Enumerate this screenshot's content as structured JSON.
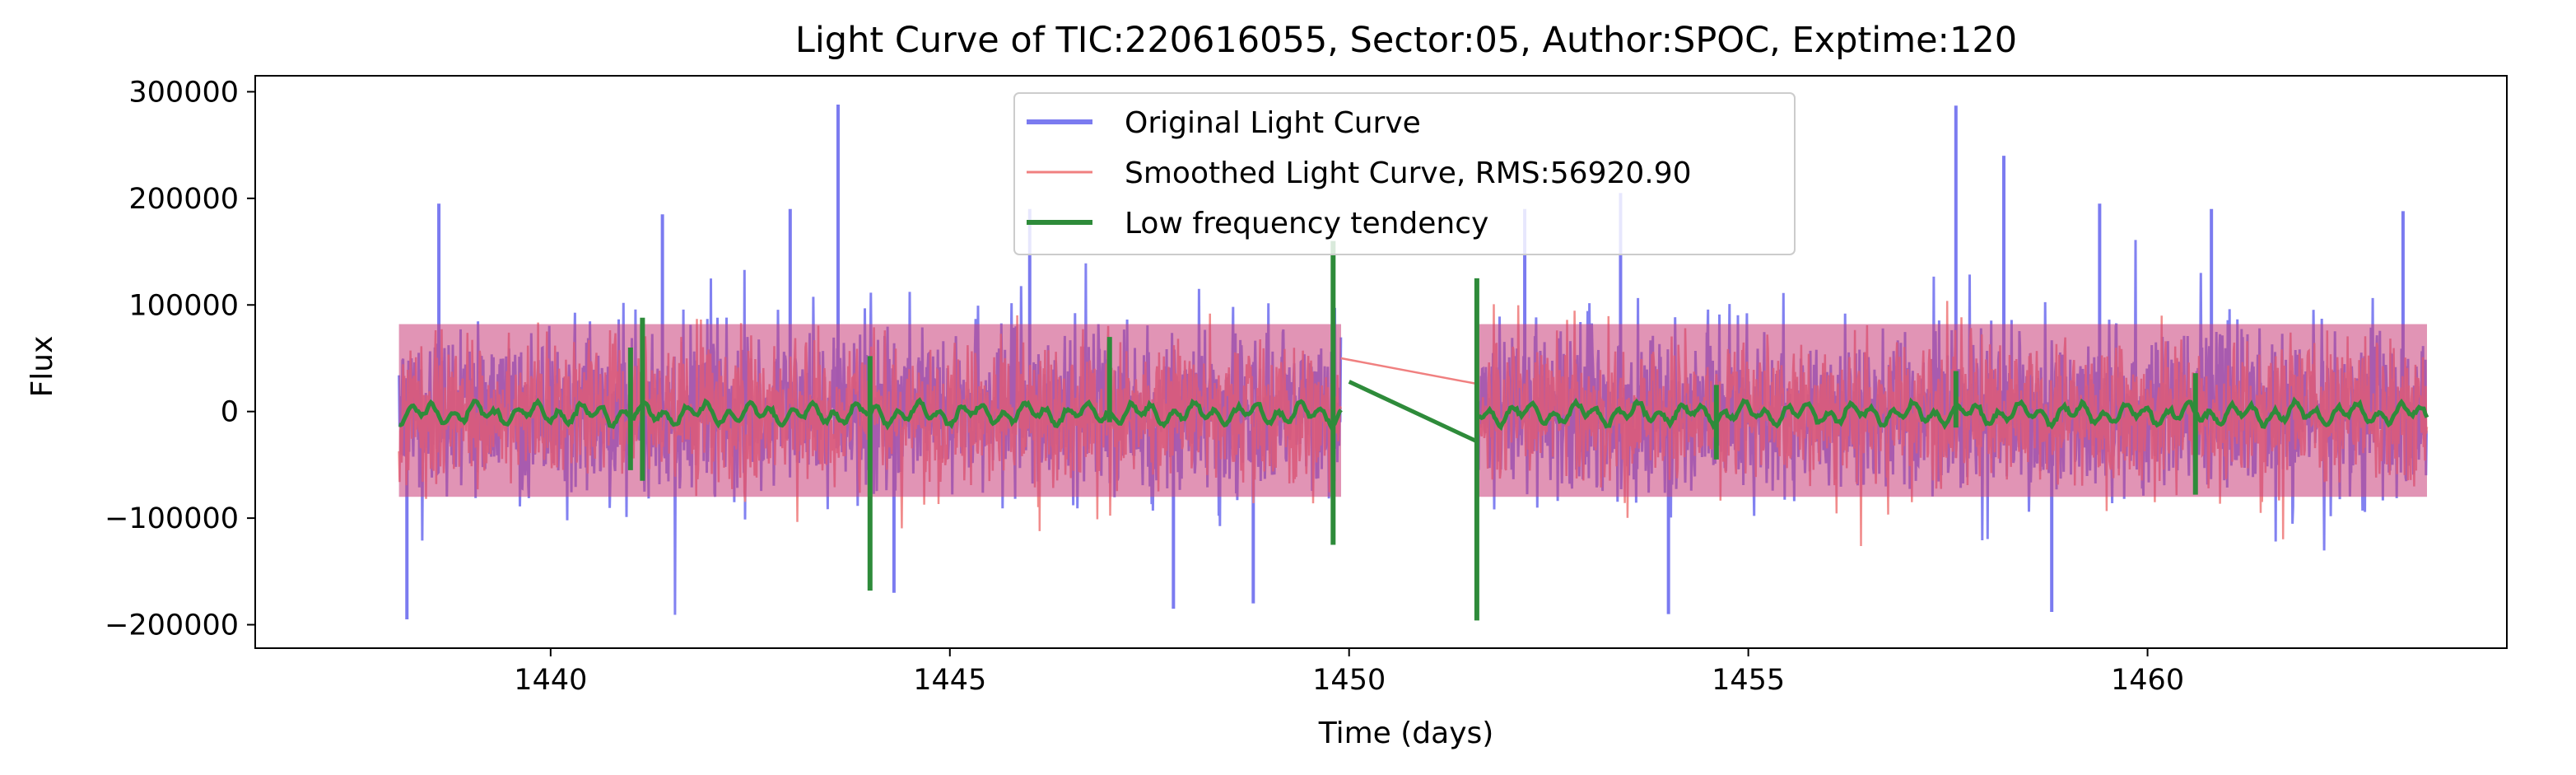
{
  "chart_data": {
    "type": "line",
    "title": "Light Curve of TIC:220616055, Sector:05, Author:SPOC, Exptime:120",
    "xlabel": "Time (days)",
    "ylabel": "Flux",
    "xlim": [
      1436.3,
      1464.5
    ],
    "ylim": [
      -222000,
      315000
    ],
    "x_ticks": [
      1440,
      1445,
      1450,
      1455,
      1460
    ],
    "y_ticks": [
      -200000,
      -100000,
      0,
      100000,
      200000,
      300000
    ],
    "x_tick_labels": [
      "1440",
      "1445",
      "1450",
      "1455",
      "1460"
    ],
    "y_tick_labels": [
      "−200000",
      "−100000",
      "0",
      "100000",
      "200000",
      "300000"
    ],
    "grid": false,
    "legend_position": "top-center",
    "segments": [
      {
        "x_start": 1438.1,
        "x_end": 1449.9
      },
      {
        "x_start": 1451.6,
        "x_end": 1463.5
      }
    ],
    "series": [
      {
        "name": "Original Light Curve",
        "color": "#7b7bf0",
        "style": "noisy-band",
        "typical_range": [
          -110000,
          120000
        ],
        "spikes": [
          {
            "x": 1438.2,
            "y": -195000
          },
          {
            "x": 1438.6,
            "y": 195000
          },
          {
            "x": 1441.4,
            "y": 185000
          },
          {
            "x": 1443.0,
            "y": 190000
          },
          {
            "x": 1443.6,
            "y": 288000
          },
          {
            "x": 1444.3,
            "y": -170000
          },
          {
            "x": 1446.0,
            "y": 190000
          },
          {
            "x": 1447.8,
            "y": -185000
          },
          {
            "x": 1448.8,
            "y": -180000
          },
          {
            "x": 1452.2,
            "y": 190000
          },
          {
            "x": 1453.4,
            "y": 205000
          },
          {
            "x": 1454.0,
            "y": -190000
          },
          {
            "x": 1457.6,
            "y": 287000
          },
          {
            "x": 1458.2,
            "y": 240000
          },
          {
            "x": 1458.8,
            "y": -188000
          },
          {
            "x": 1459.4,
            "y": 195000
          },
          {
            "x": 1460.8,
            "y": 190000
          },
          {
            "x": 1463.2,
            "y": 188000
          }
        ]
      },
      {
        "name": "Smoothed Light Curve, RMS:56920.90",
        "color": "#f08080",
        "style": "noisy-band",
        "gap_connector": [
          [
            1449.9,
            50000
          ],
          [
            1451.6,
            26000
          ]
        ]
      },
      {
        "name": "Low frequency tendency",
        "color": "#2e8b3a",
        "style": "trend",
        "gap_connector": [
          [
            1450.0,
            28000
          ],
          [
            1451.6,
            -28000
          ]
        ],
        "spikes": [
          {
            "x": 1441.0,
            "y": 60000,
            "y2": -55000
          },
          {
            "x": 1441.15,
            "y": 88000,
            "y2": -65000
          },
          {
            "x": 1444.0,
            "y": 52000,
            "y2": -168000
          },
          {
            "x": 1447.0,
            "y": 70000,
            "y2": -10000
          },
          {
            "x": 1449.8,
            "y": 160000,
            "y2": -125000
          },
          {
            "x": 1451.6,
            "y": 125000,
            "y2": -196000
          },
          {
            "x": 1454.6,
            "y": 25000,
            "y2": -45000
          },
          {
            "x": 1457.6,
            "y": 38000,
            "y2": -15000
          },
          {
            "x": 1460.6,
            "y": 36000,
            "y2": -78000
          }
        ]
      }
    ]
  }
}
